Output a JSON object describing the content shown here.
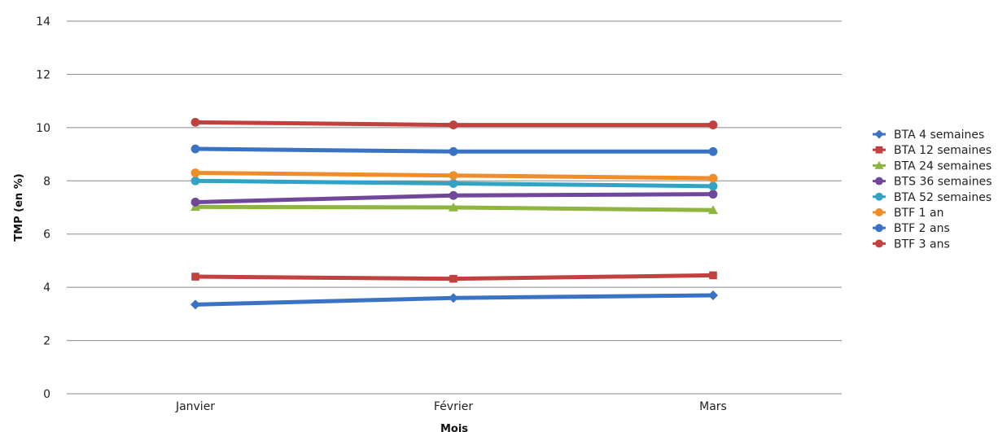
{
  "chart_data": {
    "type": "line",
    "title": "",
    "xlabel": "Mois",
    "ylabel": "TMP (en %)",
    "categories": [
      "Janvier",
      "Février",
      "Mars"
    ],
    "ylim": [
      0,
      14
    ],
    "yticks": [
      0,
      2,
      4,
      6,
      8,
      10,
      12,
      14
    ],
    "grid": true,
    "legend_position": "right",
    "series": [
      {
        "name": "BTA 4 semaines",
        "color": "#3b73c4",
        "marker": "diamond",
        "values": [
          3.35,
          3.6,
          3.7
        ]
      },
      {
        "name": "BTA 12 semaines",
        "color": "#c0413d",
        "marker": "square",
        "values": [
          4.4,
          4.32,
          4.45
        ]
      },
      {
        "name": "BTA 24 semaines",
        "color": "#8db540",
        "marker": "triangle",
        "values": [
          7.02,
          7.0,
          6.9
        ]
      },
      {
        "name": "BTS 36 semaines",
        "color": "#70479a",
        "marker": "circle",
        "values": [
          7.2,
          7.45,
          7.5
        ]
      },
      {
        "name": "BTA 52 semaines",
        "color": "#33a3c4",
        "marker": "circle",
        "values": [
          8.0,
          7.9,
          7.8
        ]
      },
      {
        "name": "BTF 1 an",
        "color": "#f08c2a",
        "marker": "circle",
        "values": [
          8.3,
          8.2,
          8.1
        ]
      },
      {
        "name": "BTF 2 ans",
        "color": "#3b73c4",
        "marker": "circle",
        "values": [
          9.2,
          9.1,
          9.1
        ]
      },
      {
        "name": "BTF 3 ans",
        "color": "#c0413d",
        "marker": "circle",
        "values": [
          10.2,
          10.1,
          10.1
        ]
      }
    ]
  }
}
